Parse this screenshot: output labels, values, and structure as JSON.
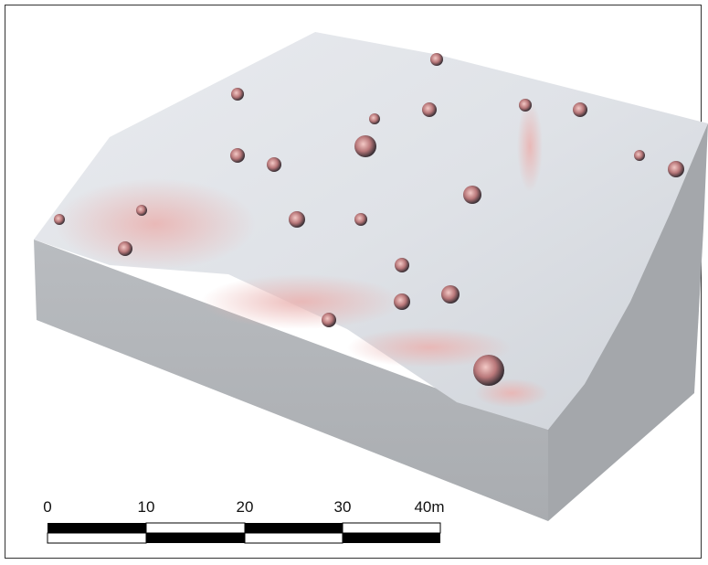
{
  "scale_bar": {
    "labels": [
      "0",
      "10",
      "20",
      "30",
      "40m"
    ]
  }
}
